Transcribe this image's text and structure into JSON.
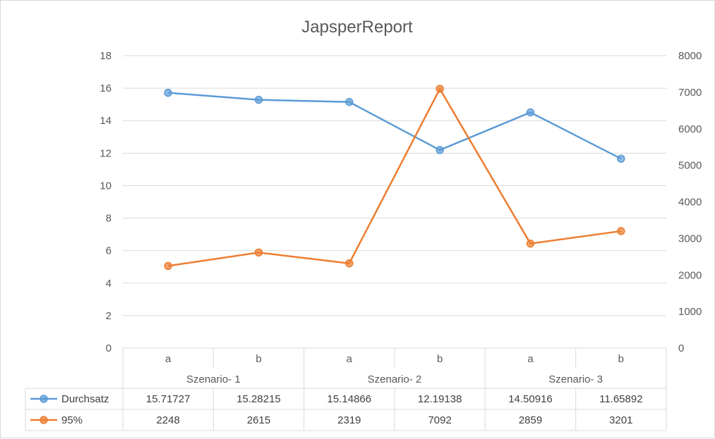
{
  "chart_data": {
    "type": "line",
    "title": "JapsperReport",
    "groups": [
      {
        "name": "Szenario- 1",
        "categories": [
          "a",
          "b"
        ]
      },
      {
        "name": "Szenario- 2",
        "categories": [
          "a",
          "b"
        ]
      },
      {
        "name": "Szenario- 3",
        "categories": [
          "a",
          "b"
        ]
      }
    ],
    "series": [
      {
        "name": "Durchsatz",
        "axis": "left",
        "color": "#5b9bd5",
        "values": [
          15.71727,
          15.28215,
          15.14866,
          12.19138,
          14.50916,
          11.65892
        ],
        "labels": [
          "15.71727",
          "15.28215",
          "15.14866",
          "12.19138",
          "14.50916",
          "11.65892"
        ]
      },
      {
        "name": "95%",
        "axis": "right",
        "color": "#ed7d31",
        "values": [
          2248,
          2615,
          2319,
          7092,
          2859,
          3201
        ],
        "labels": [
          "2248",
          "2615",
          "2319",
          "7092",
          "2859",
          "3201"
        ]
      }
    ],
    "y_left": {
      "ylim": [
        0,
        18
      ],
      "ticks": [
        0,
        2,
        4,
        6,
        8,
        10,
        12,
        14,
        16,
        18
      ]
    },
    "y_right": {
      "ylim": [
        0,
        8000
      ],
      "ticks": [
        0,
        1000,
        2000,
        3000,
        4000,
        5000,
        6000,
        7000,
        8000
      ]
    },
    "grid": true,
    "legend": "data-table"
  }
}
